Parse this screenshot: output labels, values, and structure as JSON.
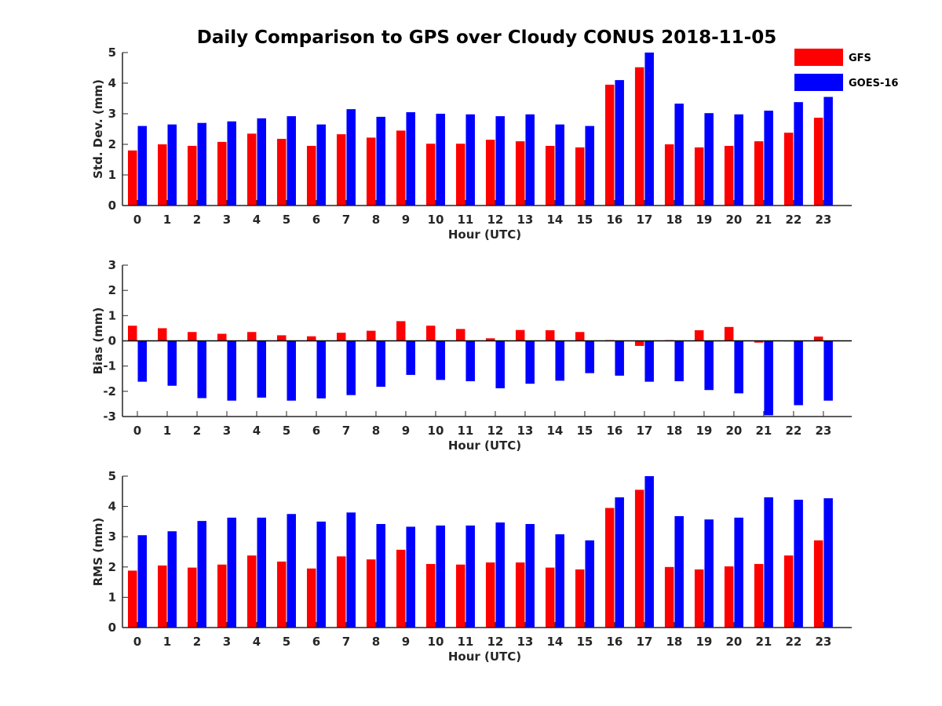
{
  "title": "Daily Comparison to GPS over Cloudy CONUS 2018-11-05",
  "colors": {
    "GFS": "#ff0000",
    "GOES-16": "#0000ff",
    "axis": "#262626"
  },
  "legend": {
    "placement": "top-right",
    "entries": [
      "GFS",
      "GOES-16"
    ]
  },
  "chart_data": [
    {
      "type": "bar",
      "xlabel": "Hour (UTC)",
      "ylabel": "Std. Dev. (mm)",
      "ylim": [
        0,
        5
      ],
      "yticks": [
        0,
        1,
        2,
        3,
        4,
        5
      ],
      "categories": [
        "0",
        "1",
        "2",
        "3",
        "4",
        "5",
        "6",
        "7",
        "8",
        "9",
        "10",
        "11",
        "12",
        "13",
        "14",
        "15",
        "16",
        "17",
        "18",
        "19",
        "20",
        "21",
        "22",
        "23"
      ],
      "series": [
        {
          "name": "GFS",
          "values": [
            1.8,
            2.0,
            1.95,
            2.08,
            2.35,
            2.18,
            1.95,
            2.33,
            2.22,
            2.45,
            2.02,
            2.02,
            2.15,
            2.1,
            1.95,
            1.9,
            3.95,
            4.52,
            2.0,
            1.9,
            1.95,
            2.1,
            2.38,
            2.87
          ]
        },
        {
          "name": "GOES-16",
          "values": [
            2.6,
            2.65,
            2.7,
            2.75,
            2.85,
            2.92,
            2.65,
            3.15,
            2.9,
            3.05,
            3.0,
            2.98,
            2.92,
            2.98,
            2.65,
            2.6,
            4.1,
            5.0,
            3.33,
            3.02,
            2.98,
            3.1,
            3.38,
            3.55
          ]
        }
      ]
    },
    {
      "type": "bar",
      "xlabel": "Hour (UTC)",
      "ylabel": "Bias (mm)",
      "ylim": [
        -3,
        3
      ],
      "yticks": [
        -3,
        -2,
        -1,
        0,
        1,
        2,
        3
      ],
      "categories": [
        "0",
        "1",
        "2",
        "3",
        "4",
        "5",
        "6",
        "7",
        "8",
        "9",
        "10",
        "11",
        "12",
        "13",
        "14",
        "15",
        "16",
        "17",
        "18",
        "19",
        "20",
        "21",
        "22",
        "23"
      ],
      "series": [
        {
          "name": "GFS",
          "values": [
            0.6,
            0.5,
            0.35,
            0.28,
            0.35,
            0.22,
            0.18,
            0.32,
            0.4,
            0.78,
            0.6,
            0.47,
            0.1,
            0.43,
            0.42,
            0.35,
            0.03,
            -0.2,
            0.03,
            0.42,
            0.55,
            -0.07,
            0.0,
            0.17
          ]
        },
        {
          "name": "GOES-16",
          "values": [
            -1.62,
            -1.78,
            -2.27,
            -2.37,
            -2.25,
            -2.37,
            -2.28,
            -2.15,
            -1.82,
            -1.35,
            -1.55,
            -1.6,
            -1.88,
            -1.7,
            -1.58,
            -1.28,
            -1.38,
            -1.62,
            -1.6,
            -1.95,
            -2.08,
            -2.95,
            -2.55,
            -2.37
          ]
        }
      ]
    },
    {
      "type": "bar",
      "xlabel": "Hour (UTC)",
      "ylabel": "RMS (mm)",
      "ylim": [
        0,
        5
      ],
      "yticks": [
        0,
        1,
        2,
        3,
        4,
        5
      ],
      "categories": [
        "0",
        "1",
        "2",
        "3",
        "4",
        "5",
        "6",
        "7",
        "8",
        "9",
        "10",
        "11",
        "12",
        "13",
        "14",
        "15",
        "16",
        "17",
        "18",
        "19",
        "20",
        "21",
        "22",
        "23"
      ],
      "series": [
        {
          "name": "GFS",
          "values": [
            1.88,
            2.05,
            1.98,
            2.08,
            2.38,
            2.18,
            1.95,
            2.35,
            2.25,
            2.57,
            2.1,
            2.08,
            2.15,
            2.15,
            1.98,
            1.92,
            3.95,
            4.55,
            2.0,
            1.92,
            2.02,
            2.1,
            2.38,
            2.88
          ]
        },
        {
          "name": "GOES-16",
          "values": [
            3.05,
            3.18,
            3.52,
            3.63,
            3.63,
            3.75,
            3.5,
            3.8,
            3.42,
            3.33,
            3.37,
            3.37,
            3.47,
            3.42,
            3.08,
            2.88,
            4.3,
            5.0,
            3.68,
            3.57,
            3.63,
            4.3,
            4.22,
            4.27
          ]
        }
      ]
    }
  ]
}
